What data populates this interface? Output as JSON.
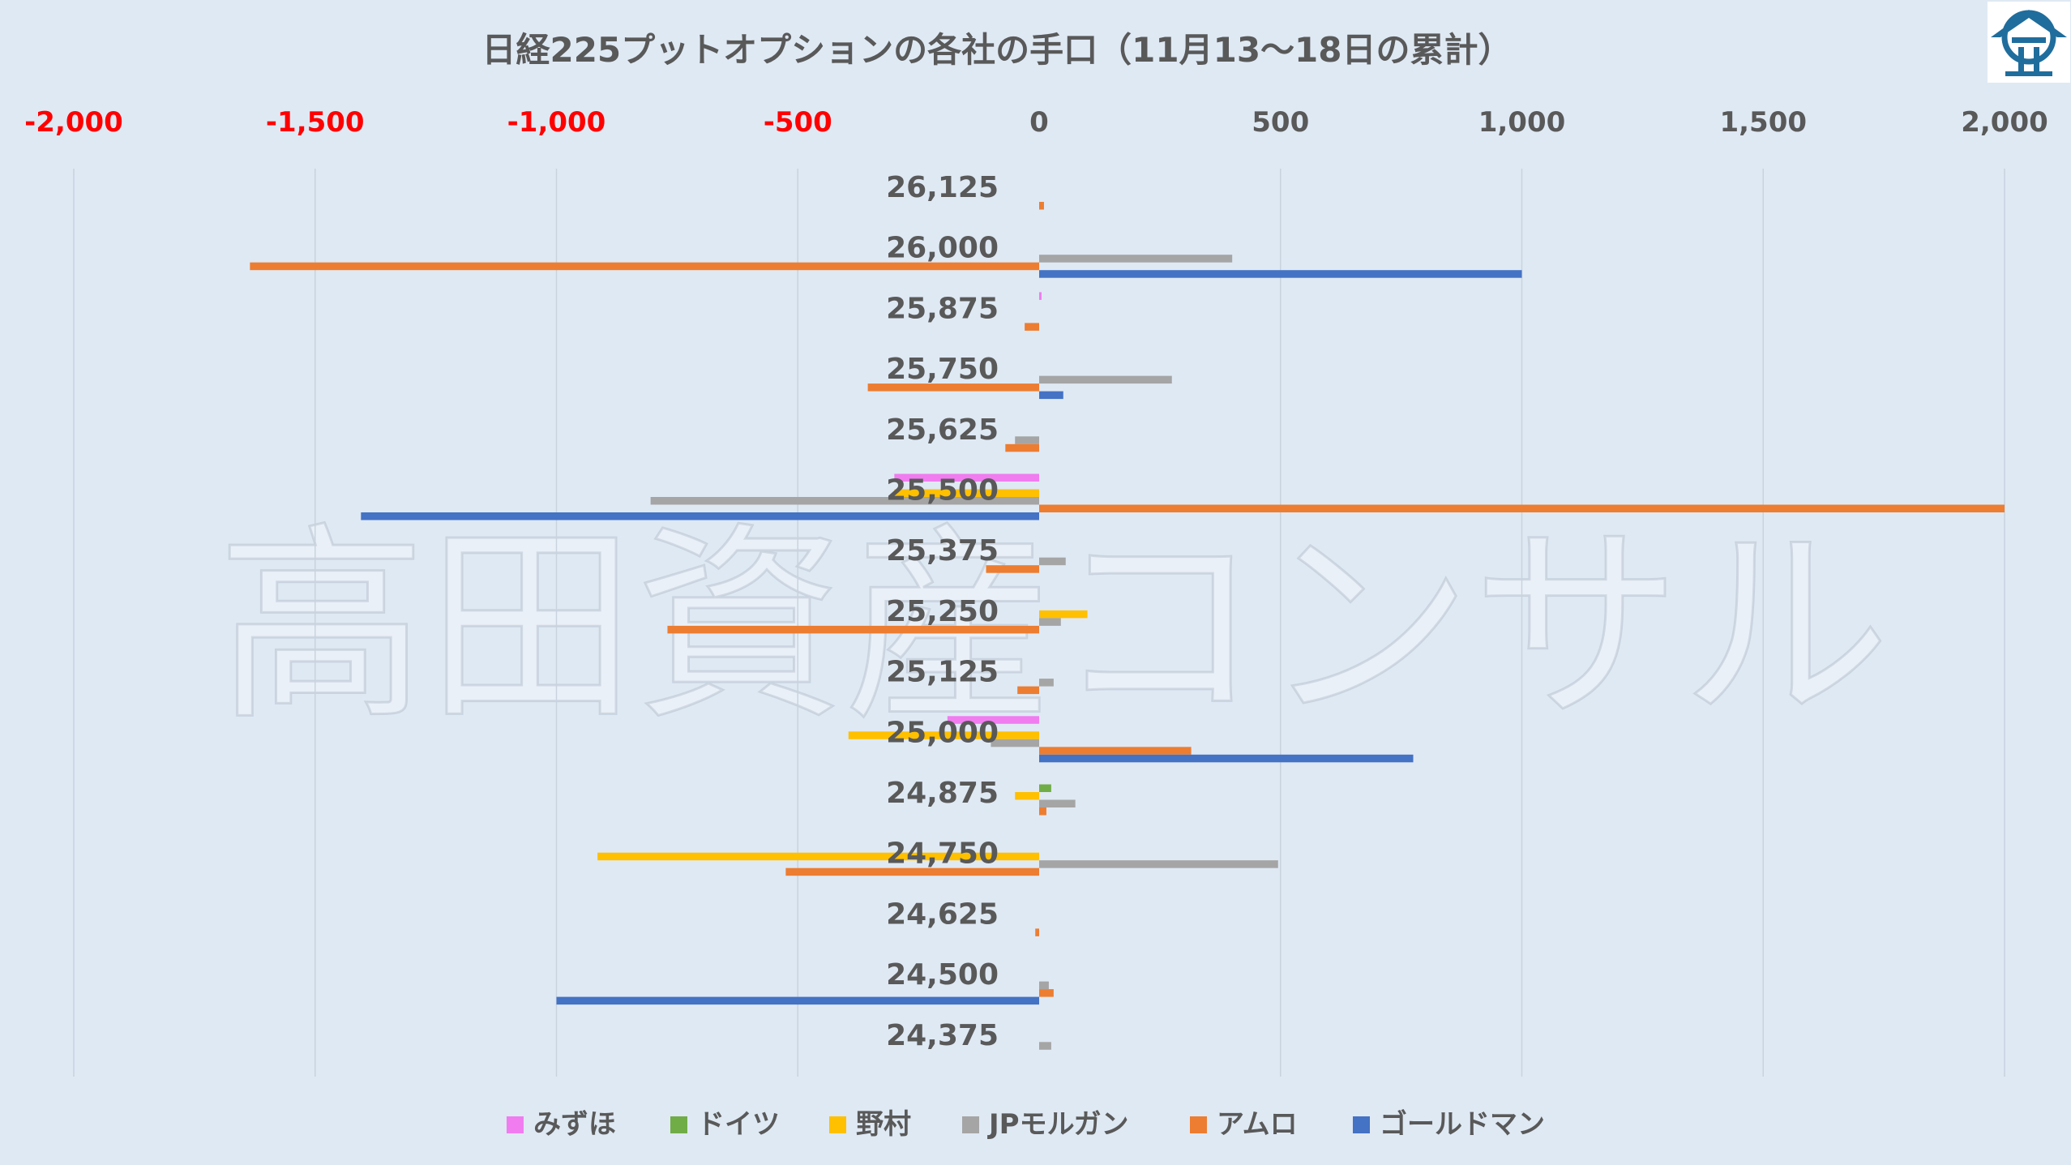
{
  "watermark": "高田資産コンサル",
  "chart_data": {
    "type": "bar",
    "orientation": "horizontal",
    "title": "日経225プットオプションの各社の手口（11月13～18日の累計）",
    "xlim": [
      -2000,
      2000
    ],
    "x_ticks": [
      -2000,
      -1500,
      -1000,
      -500,
      0,
      500,
      1000,
      1500,
      2000
    ],
    "x_tick_labels": [
      "-2,000",
      "-1,500",
      "-1,000",
      "-500",
      "0",
      "500",
      "1,000",
      "1,500",
      "2,000"
    ],
    "negative_tick_color": "#ff0000",
    "grid": "vertical",
    "legend_position": "bottom",
    "categories": [
      "26,125",
      "26,000",
      "25,875",
      "25,750",
      "25,625",
      "25,500",
      "25,375",
      "25,250",
      "25,125",
      "25,000",
      "24,875",
      "24,750",
      "24,625",
      "24,500",
      "24,375"
    ],
    "series": [
      {
        "name": "みずほ",
        "color": "#f07cf0",
        "values": [
          0,
          0,
          5,
          0,
          0,
          -300,
          0,
          0,
          0,
          -190,
          0,
          0,
          0,
          0,
          0
        ]
      },
      {
        "name": "ドイツ",
        "color": "#70ad47",
        "values": [
          0,
          0,
          0,
          0,
          0,
          0,
          0,
          0,
          0,
          0,
          25,
          0,
          0,
          0,
          0
        ]
      },
      {
        "name": "野村",
        "color": "#ffc000",
        "values": [
          0,
          0,
          0,
          0,
          0,
          -300,
          0,
          100,
          0,
          -395,
          -50,
          -915,
          0,
          0,
          0
        ]
      },
      {
        "name": "JPモルガン",
        "color": "#a5a5a5",
        "values": [
          0,
          400,
          0,
          275,
          -50,
          -805,
          55,
          45,
          30,
          -100,
          75,
          495,
          0,
          20,
          25
        ]
      },
      {
        "name": "アムロ",
        "color": "#ed7d31",
        "values": [
          10,
          -1635,
          -30,
          -355,
          -70,
          2000,
          -110,
          -770,
          -45,
          315,
          15,
          -525,
          -8,
          30,
          0
        ]
      },
      {
        "name": "ゴールドマン",
        "color": "#4472c4",
        "values": [
          0,
          1000,
          0,
          50,
          0,
          -1405,
          0,
          0,
          0,
          775,
          0,
          0,
          0,
          -1000,
          0
        ]
      }
    ]
  }
}
